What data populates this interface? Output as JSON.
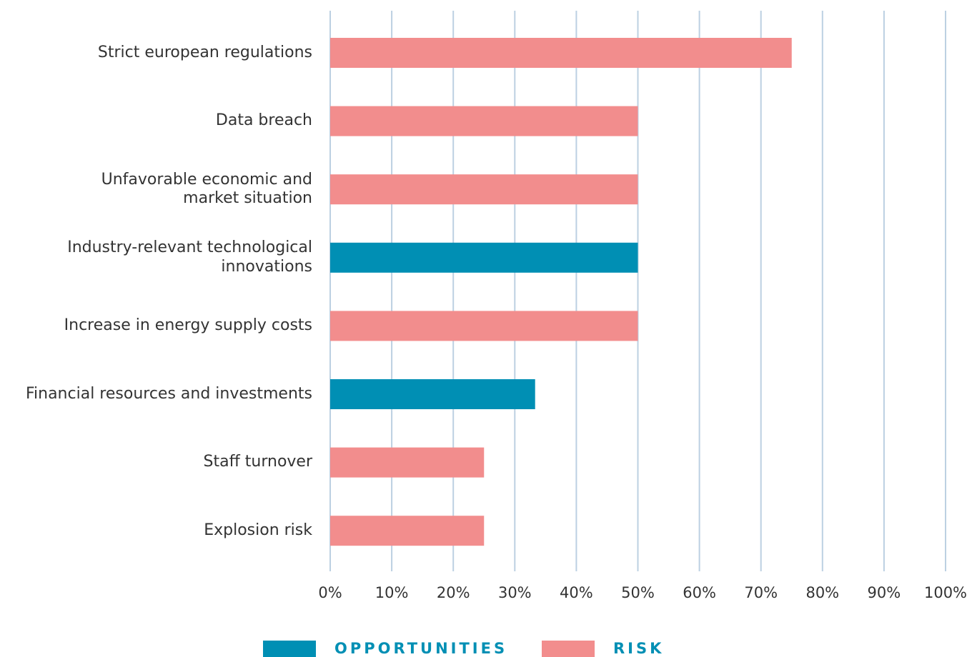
{
  "chart_data": {
    "type": "bar",
    "orientation": "horizontal",
    "categories": [
      "Strict european regulations",
      "Data breach",
      "Unfavorable economic and\nmarket situation",
      "Industry-relevant technological\ninnovations",
      "Increase in energy supply costs",
      "Financial resources and investments",
      "Staff turnover",
      "Explosion risk"
    ],
    "series": [
      {
        "name": "OPPORTUNITIES",
        "color": "#008fb4",
        "values": [
          null,
          null,
          null,
          50,
          null,
          33.3,
          null,
          null
        ]
      },
      {
        "name": "RISK",
        "color": "#f28d8d",
        "values": [
          75,
          50,
          50,
          null,
          50,
          null,
          25,
          25
        ]
      }
    ],
    "xlim": [
      0,
      100
    ],
    "xticks": [
      {
        "value": 0,
        "label": "0%"
      },
      {
        "value": 10,
        "label": "10%"
      },
      {
        "value": 20,
        "label": "20%"
      },
      {
        "value": 30,
        "label": "30%"
      },
      {
        "value": 40,
        "label": "40%"
      },
      {
        "value": 50,
        "label": "50%"
      },
      {
        "value": 60,
        "label": "60%"
      },
      {
        "value": 70,
        "label": "70%"
      },
      {
        "value": 80,
        "label": "80%"
      },
      {
        "value": 90,
        "label": "90%"
      },
      {
        "value": 100,
        "label": "100%"
      }
    ],
    "grid": true,
    "legend": "bottom"
  }
}
